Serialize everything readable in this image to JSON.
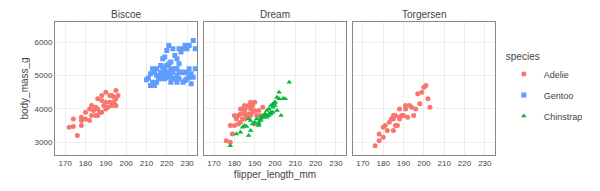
{
  "chart_data": {
    "type": "scatter",
    "xlabel": "flipper_length_mm",
    "ylabel": "body_mass_g",
    "legend_title": "species",
    "legend": "right",
    "grid": true,
    "xlim": [
      165,
      235
    ],
    "ylim": [
      2620,
      6600
    ],
    "xticks": [
      170,
      180,
      190,
      200,
      210,
      220,
      230
    ],
    "yticks": [
      3000,
      4000,
      5000,
      6000
    ],
    "facets": [
      {
        "title": "Biscoe",
        "series": [
          {
            "name": "Adelie",
            "color": "#F8766D",
            "marker": "circle",
            "x": [
              172,
              174,
              174,
              176,
              178,
              178,
              178,
              180,
              180,
              182,
              182,
              183,
              183,
              184,
              185,
              185,
              186,
              186,
              186,
              187,
              188,
              188,
              188,
              189,
              190,
              190,
              190,
              191,
              192,
              192,
              193,
              193,
              194,
              194,
              195,
              195,
              195,
              196
            ],
            "values": [
              3450,
              3475,
              3700,
              3200,
              3500,
              3750,
              3650,
              3700,
              3900,
              3650,
              4000,
              3800,
              4100,
              3950,
              3800,
              4050,
              3800,
              4000,
              4300,
              3900,
              3900,
              4250,
              4400,
              4100,
              4000,
              4200,
              4500,
              4050,
              4200,
              4400,
              4100,
              4400,
              4200,
              4350,
              4100,
              4300,
              4550,
              4400
            ]
          },
          {
            "name": "Gentoo",
            "color": "#619CFF",
            "marker": "square",
            "x": [
              210,
              211,
              212,
              212,
              213,
              213,
              214,
              214,
              215,
              215,
              215,
              216,
              216,
              217,
              217,
              217,
              218,
              218,
              218,
              218,
              219,
              219,
              219,
              219,
              220,
              220,
              220,
              220,
              221,
              221,
              221,
              221,
              222,
              222,
              222,
              222,
              223,
              223,
              223,
              224,
              224,
              224,
              225,
              225,
              225,
              225,
              226,
              226,
              226,
              226,
              227,
              227,
              228,
              228,
              228,
              229,
              229,
              229,
              230,
              230,
              230,
              231,
              231,
              231,
              232,
              232,
              233,
              233,
              234,
              234
            ],
            "values": [
              4875,
              4925,
              4700,
              5050,
              4800,
              5200,
              4700,
              5100,
              4800,
              5000,
              5200,
              4900,
              5000,
              4900,
              5100,
              5300,
              4950,
              5100,
              5250,
              5500,
              4900,
              5100,
              5200,
              5550,
              5000,
              5100,
              5300,
              5750,
              4950,
              5100,
              5350,
              5900,
              4800,
              5000,
              5200,
              5400,
              4900,
              5100,
              5800,
              4900,
              5200,
              5600,
              4800,
              5000,
              5200,
              5500,
              4900,
              5100,
              5350,
              5800,
              5100,
              5700,
              4800,
              5100,
              5800,
              4850,
              5100,
              5900,
              4900,
              5100,
              5800,
              4950,
              5200,
              5900,
              4750,
              5050,
              4950,
              6050,
              5200,
              5800
            ]
          }
        ]
      },
      {
        "title": "Dream",
        "series": [
          {
            "name": "Adelie",
            "color": "#F8766D",
            "marker": "circle",
            "x": [
              176,
              178,
              178,
              179,
              180,
              180,
              181,
              182,
              182,
              183,
              183,
              183,
              184,
              184,
              185,
              185,
              185,
              185,
              186,
              186,
              187,
              187,
              188,
              188,
              188,
              189,
              189,
              190,
              190,
              190,
              191,
              192,
              193,
              194
            ],
            "values": [
              3050,
              3000,
              3500,
              3250,
              3500,
              3800,
              3700,
              3550,
              3800,
              3600,
              3850,
              4000,
              3700,
              4000,
              3700,
              3850,
              4100,
              3950,
              3750,
              4050,
              3850,
              4100,
              3800,
              4000,
              4200,
              3900,
              4100,
              3950,
              4200,
              3550,
              3800,
              3950,
              3800,
              4050
            ]
          },
          {
            "name": "Chinstrap",
            "color": "#00BA38",
            "marker": "triangle",
            "x": [
              178,
              181,
              183,
              184,
              185,
              186,
              187,
              187,
              188,
              188,
              189,
              190,
              191,
              192,
              192,
              193,
              193,
              194,
              194,
              195,
              195,
              196,
              196,
              197,
              197,
              198,
              198,
              199,
              199,
              200,
              200,
              201,
              202,
              203,
              204,
              205,
              192,
              193,
              195,
              196,
              197,
              198,
              199,
              200,
              201,
              202,
              204,
              207
            ],
            "values": [
              2900,
              3250,
              3300,
              3450,
              3500,
              3475,
              3200,
              3700,
              3350,
              3650,
              3550,
              3600,
              3700,
              3550,
              3500,
              3700,
              3650,
              3750,
              3750,
              3800,
              3850,
              3750,
              3800,
              3800,
              3850,
              3850,
              3900,
              3900,
              4050,
              4100,
              4200,
              3950,
              4300,
              3800,
              4300,
              4300,
              3600,
              3750,
              3850,
              3950,
              4000,
              4100,
              4150,
              4200,
              4350,
              4500,
              4300,
              4800
            ]
          }
        ]
      },
      {
        "title": "Torgersen",
        "series": [
          {
            "name": "Adelie",
            "color": "#F8766D",
            "marker": "circle",
            "x": [
              176,
              178,
              178,
              180,
              180,
              181,
              182,
              183,
              184,
              185,
              185,
              185,
              186,
              186,
              187,
              188,
              188,
              188,
              189,
              190,
              191,
              191,
              192,
              193,
              194,
              195,
              196,
              197,
              198,
              199,
              200,
              201,
              202,
              203
            ],
            "values": [
              2900,
              3050,
              3250,
              3150,
              3450,
              3500,
              3350,
              3600,
              3700,
              3350,
              3700,
              3800,
              3500,
              3800,
              3500,
              3700,
              4000,
              3750,
              3800,
              3800,
              4000,
              4100,
              3750,
              4100,
              4050,
              3800,
              4000,
              4450,
              4150,
              4500,
              4650,
              4700,
              4300,
              4050
            ]
          }
        ]
      }
    ]
  }
}
